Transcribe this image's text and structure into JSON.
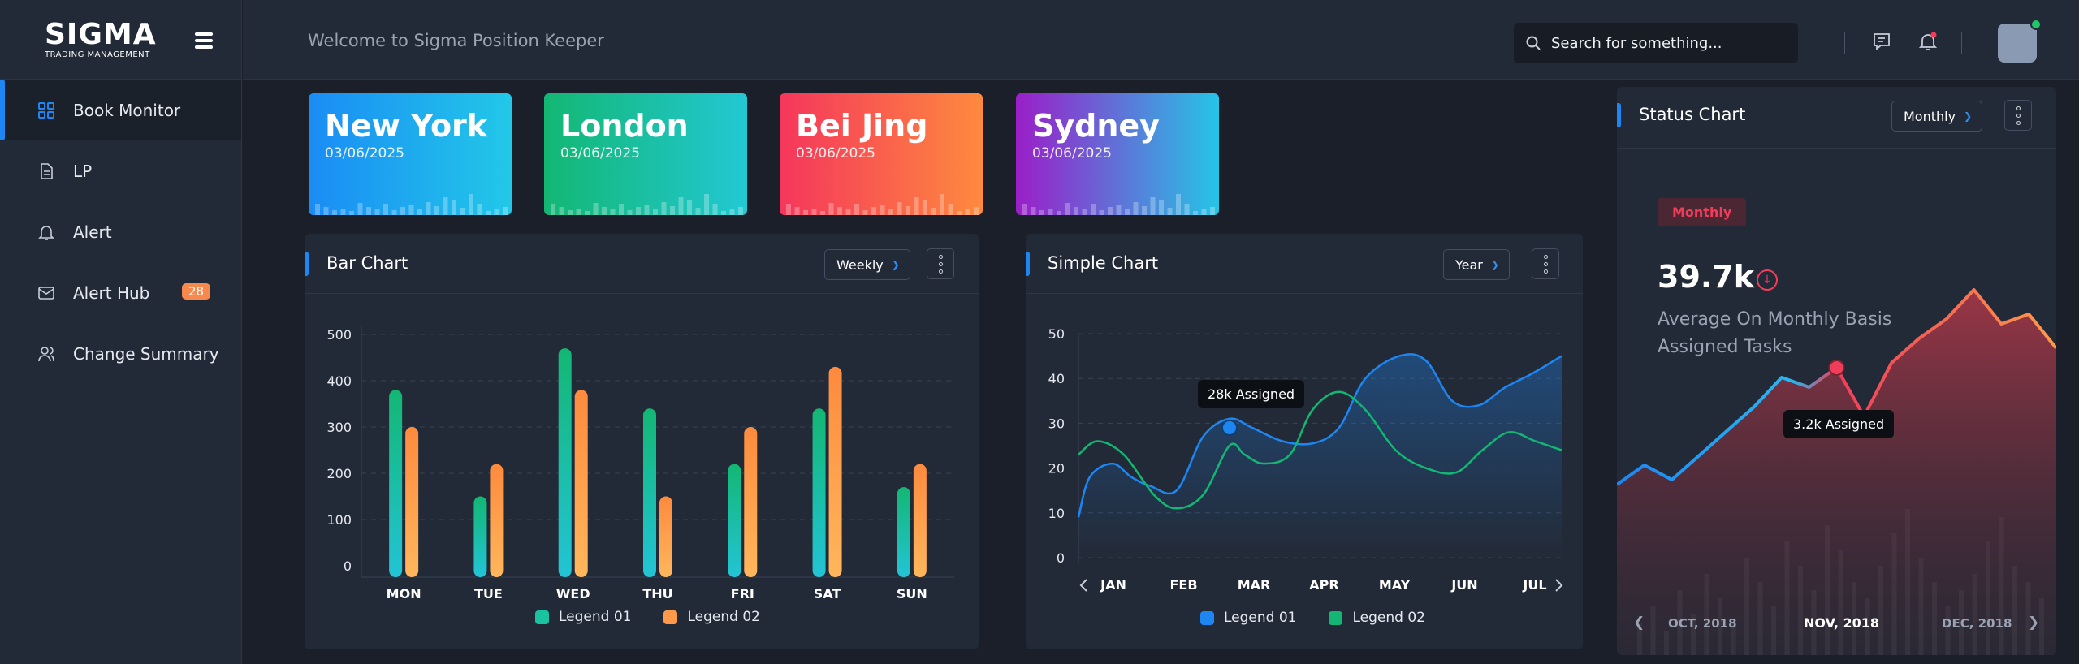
{
  "brand": {
    "name": "SIGMA",
    "subtitle": "TRADING MANAGEMENT"
  },
  "sidebar": {
    "items": [
      {
        "label": "Book Monitor",
        "icon": "grid-icon",
        "active": true
      },
      {
        "label": "LP",
        "icon": "document-icon"
      },
      {
        "label": "Alert",
        "icon": "bell-icon"
      },
      {
        "label": "Alert Hub",
        "icon": "mail-icon",
        "badge": "28"
      },
      {
        "label": "Change Summary",
        "icon": "users-icon"
      }
    ]
  },
  "header": {
    "welcome": "Welcome to Sigma Position Keeper",
    "search_placeholder": "Search for something...",
    "icons": [
      "message-icon",
      "notification-bell-icon"
    ]
  },
  "cities": [
    {
      "name": "New York",
      "date": "03/06/2025",
      "colors": [
        "#1a8cf5",
        "#22c8e8"
      ]
    },
    {
      "name": "London",
      "date": "03/06/2025",
      "colors": [
        "#13b773",
        "#22c8d3"
      ]
    },
    {
      "name": "Bei Jing",
      "date": "03/06/2025",
      "colors": [
        "#f5365c",
        "#fe8a3e"
      ]
    },
    {
      "name": "Sydney",
      "date": "03/06/2025",
      "colors": [
        "#9b1ec8",
        "#25c5e6"
      ]
    }
  ],
  "bar_panel": {
    "title": "Bar Chart",
    "dropdown": "Weekly"
  },
  "line_panel": {
    "title": "Simple Chart",
    "dropdown": "Year",
    "tooltip": "28k Assigned"
  },
  "status_panel": {
    "title": "Status Chart",
    "dropdown": "Monthly",
    "tag": "Monthly",
    "value": "39.7k",
    "description": "Average On Monthly Basis Assigned Tasks",
    "tooltip": "3.2k Assigned",
    "months": [
      "OCT, 2018",
      "NOV, 2018",
      "DEC, 2018"
    ],
    "active_month": 1
  },
  "colors": {
    "accent": "#1d86f2",
    "green": "#13b773",
    "orange": "#fe9a4a",
    "red": "#f03d5a",
    "blue": "#1d86f2"
  },
  "chart_data": [
    {
      "type": "bar",
      "title": "Bar Chart",
      "categories": [
        "MON",
        "TUE",
        "WED",
        "THU",
        "FRI",
        "SAT",
        "SUN"
      ],
      "yticks": [
        0,
        100,
        200,
        300,
        400,
        500
      ],
      "ylim": [
        0,
        500
      ],
      "series": [
        {
          "name": "Legend 01",
          "values": [
            380,
            150,
            470,
            340,
            220,
            340,
            170
          ],
          "color": "#13b773"
        },
        {
          "name": "Legend 02",
          "values": [
            300,
            220,
            380,
            150,
            300,
            430,
            220
          ],
          "color": "#fe9a4a"
        }
      ],
      "grid": true,
      "legend": "bottom"
    },
    {
      "type": "line",
      "title": "Simple Chart",
      "categories": [
        "JAN",
        "FEB",
        "MAR",
        "APR",
        "MAY",
        "JUN",
        "JUL"
      ],
      "yticks": [
        0,
        10,
        20,
        30,
        40,
        50
      ],
      "ylim": [
        0,
        50
      ],
      "series": [
        {
          "name": "Legend 01",
          "color": "#1d86f2",
          "x": [
            0.0,
            0.15,
            0.45,
            0.7,
            0.95,
            1.3,
            1.65,
            2.0,
            2.3,
            2.7,
            3.1,
            3.45,
            3.8,
            4.25,
            4.6,
            4.95,
            5.3,
            5.65,
            6.0,
            6.4
          ],
          "values": [
            9,
            18,
            21,
            18,
            16,
            15,
            27,
            31,
            29,
            26,
            25.5,
            29,
            40,
            45,
            44,
            35,
            34,
            38,
            41,
            45
          ]
        },
        {
          "name": "Legend 02",
          "color": "#13b773",
          "x": [
            0.0,
            0.25,
            0.6,
            1.0,
            1.3,
            1.65,
            2.0,
            2.2,
            2.45,
            2.8,
            3.1,
            3.45,
            3.8,
            4.2,
            4.6,
            5.0,
            5.35,
            5.7,
            6.05,
            6.4
          ],
          "values": [
            23,
            26,
            23,
            14,
            11,
            14,
            25,
            23,
            21,
            23,
            33,
            37,
            33,
            24,
            20,
            19,
            24,
            28,
            26,
            24
          ]
        }
      ],
      "annotation": {
        "text": "28k Assigned",
        "x": 2.0,
        "y": 29
      },
      "grid": true,
      "legend": "bottom"
    },
    {
      "type": "line",
      "title": "Status Chart",
      "series": [
        {
          "name": "Assigned",
          "values": [
            15,
            19,
            16,
            21,
            26,
            31,
            37,
            35,
            39,
            29,
            40,
            45,
            49,
            55,
            48,
            50,
            43
          ]
        }
      ],
      "annotation": {
        "text": "3.2k Assigned",
        "index": 8
      }
    }
  ]
}
